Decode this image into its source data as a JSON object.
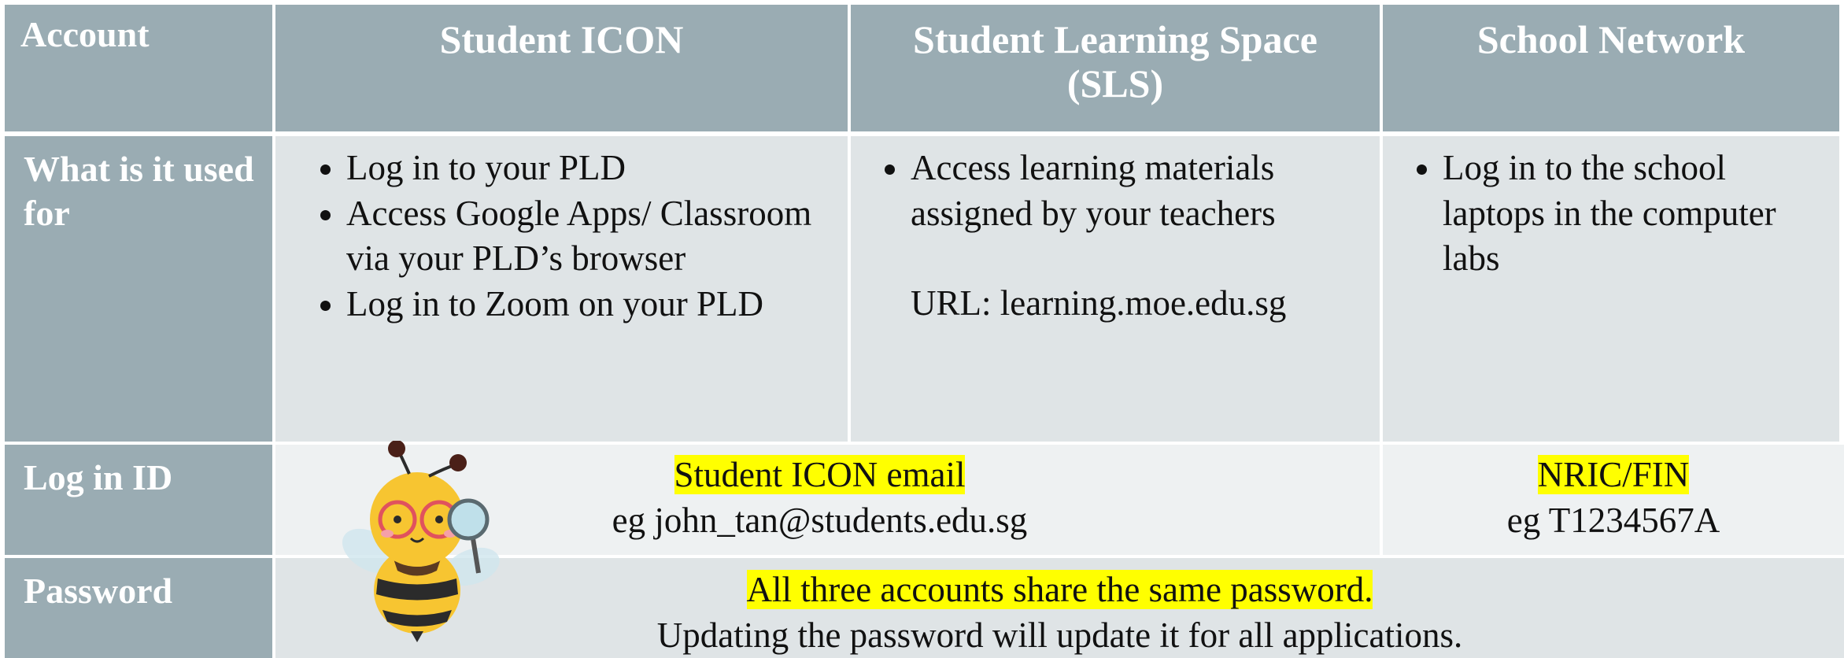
{
  "table": {
    "header": [
      "Account",
      "Student ICON",
      "Student Learning Space (SLS)",
      "School Network"
    ],
    "used_for": {
      "label": "What is it used for",
      "student_icon": [
        "Log in to your PLD",
        "Access Google Apps/ Classroom via your PLD’s browser",
        "Log in to Zoom on your PLD"
      ],
      "sls": [
        "Access learning materials assigned by your teachers"
      ],
      "sls_url": "URL: learning.moe.edu.sg",
      "school_network": [
        "Log in to the school laptops in the computer labs"
      ]
    },
    "login_id": {
      "label": "Log in ID",
      "icon_sls": {
        "highlight": "Student ICON email",
        "example": "eg john_tan@students.edu.sg"
      },
      "school_network": {
        "highlight": "NRIC/FIN",
        "example": "eg T1234567A"
      }
    },
    "password": {
      "label": "Password",
      "highlight": "All three accounts share the same password.",
      "note": "Updating the password will update it for all applications."
    }
  }
}
